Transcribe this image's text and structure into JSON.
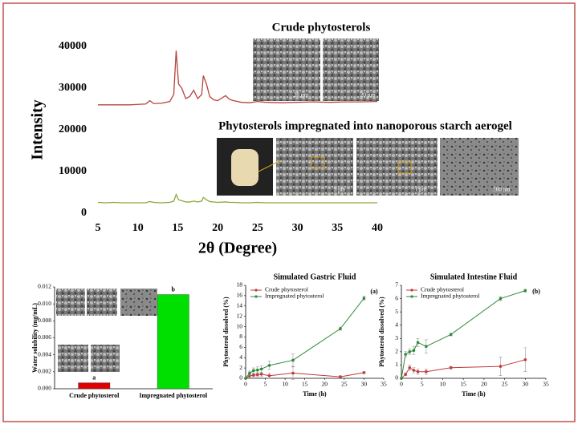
{
  "chart_data": [
    {
      "type": "line",
      "ylabel": "Intensity",
      "xlabel": "2θ (Degree)",
      "annotations": [
        "Crude phytosterols",
        "Phytosterols impregnated into nanoporous starch aerogel"
      ],
      "image_labels": [
        "20 µm",
        "20 µm",
        "5 µm",
        "1 µm",
        "500 nm"
      ],
      "x": [
        5,
        6,
        7,
        8,
        9,
        10,
        11,
        11.5,
        12,
        13,
        14,
        14.5,
        14.8,
        15.1,
        15.5,
        16,
        16.5,
        17,
        17.5,
        18,
        18.2,
        18.6,
        19,
        19.5,
        20,
        21,
        21.5,
        22,
        23,
        24,
        25,
        26,
        28,
        30,
        32,
        34,
        36,
        38,
        40
      ],
      "series": [
        {
          "color": "#b5443f",
          "values": [
            26000,
            26000,
            26000,
            26000,
            26000,
            26100,
            26200,
            27000,
            26300,
            26400,
            26800,
            28500,
            39000,
            31000,
            30000,
            27500,
            28000,
            29500,
            27500,
            28500,
            33000,
            31000,
            28000,
            27200,
            27000,
            28200,
            27300,
            27000,
            26600,
            26500,
            26800,
            26600,
            26500,
            26600,
            26700,
            26600,
            26700,
            26700,
            26800
          ]
        },
        {
          "color": "#8aa83a",
          "values": [
            2600,
            2500,
            2600,
            2500,
            2500,
            2500,
            2500,
            2800,
            2600,
            2500,
            2600,
            2900,
            4500,
            3200,
            3000,
            2700,
            2700,
            2900,
            2700,
            2900,
            3800,
            3200,
            2800,
            2700,
            2600,
            2700,
            2600,
            2600,
            2500,
            2500,
            2600,
            2500,
            2500,
            2500,
            2500,
            2500,
            2500,
            2500,
            2500
          ]
        }
      ],
      "xlim": [
        5,
        40
      ],
      "xticks": [
        5,
        10,
        15,
        20,
        25,
        30,
        35,
        40
      ],
      "ylim": [
        0,
        40000
      ],
      "yticks": [
        0,
        10000,
        20000,
        30000,
        40000
      ]
    },
    {
      "type": "bar",
      "ylabel": "Water solubility (mg/mL)",
      "categories": [
        "Crude phytosterol",
        "Impregnated phytosterol"
      ],
      "values": [
        0.0007,
        0.0111
      ],
      "colors": [
        "#e00000",
        "#00e000"
      ],
      "group_letters": [
        "a",
        "b"
      ],
      "ylim": [
        0,
        0.012
      ],
      "yticks": [
        {
          "value": 0,
          "label": "0.000"
        },
        {
          "value": 0.002,
          "label": "0.002"
        },
        {
          "value": 0.004,
          "label": "0.004"
        },
        {
          "value": 0.006,
          "label": "0.006"
        },
        {
          "value": 0.008,
          "label": "0.008"
        },
        {
          "value": 0.01,
          "label": "0.010"
        },
        {
          "value": 0.012,
          "label": "0.012"
        }
      ]
    },
    {
      "type": "line",
      "title": "Simulated Gastric Fluid",
      "panel": "(a)",
      "ylabel": "Phytosterol dissolved (%)",
      "xlabel": "Time (h)",
      "x": [
        0,
        1,
        2,
        3,
        4,
        6,
        12,
        24,
        30
      ],
      "series": [
        {
          "name": "Crude phytosterol",
          "color": "#c0393b",
          "values": [
            0,
            0.5,
            0.6,
            0.7,
            0.8,
            0.5,
            1,
            0.3,
            1.1
          ],
          "errors": [
            0,
            0.3,
            0.3,
            0.4,
            0.4,
            0.5,
            1.2,
            0.2,
            0.2
          ]
        },
        {
          "name": "Impregnated phytosterol",
          "color": "#2e8b3a",
          "values": [
            0,
            1,
            1.5,
            1.6,
            1.8,
            2.5,
            3.5,
            9.6,
            15.5
          ],
          "errors": [
            0,
            0.4,
            0.5,
            0.6,
            0.6,
            0.8,
            1.2,
            0.3,
            0.4
          ]
        }
      ],
      "xlim": [
        0,
        35
      ],
      "xticks": [
        0,
        5,
        10,
        15,
        20,
        25,
        30,
        35
      ],
      "ylim": [
        0,
        18
      ],
      "yticks": [
        0,
        2,
        4,
        6,
        8,
        10,
        12,
        14,
        16,
        18
      ]
    },
    {
      "type": "line",
      "title": "Simulated Intestine Fluid",
      "panel": "(b)",
      "ylabel": "Phytosterol dissolved (%)",
      "xlabel": "Time (h)",
      "x": [
        0,
        1,
        2,
        3,
        4,
        6,
        12,
        24,
        30
      ],
      "series": [
        {
          "name": "Crude phytosterol",
          "color": "#c0393b",
          "values": [
            0,
            0.3,
            0.8,
            0.6,
            0.5,
            0.5,
            0.8,
            0.9,
            1.4
          ],
          "errors": [
            0,
            0.1,
            0.2,
            0.2,
            0.2,
            0.2,
            0.1,
            0.7,
            0.9
          ]
        },
        {
          "name": "Impregnated phytosterol",
          "color": "#2e8b3a",
          "values": [
            0,
            1.8,
            2.0,
            2.1,
            2.7,
            2.4,
            3.3,
            6.0,
            6.6
          ],
          "errors": [
            0,
            0.2,
            0.2,
            0.3,
            0.3,
            0.5,
            0.1,
            0.15,
            0.1
          ]
        }
      ],
      "xlim": [
        0,
        35
      ],
      "xticks": [
        0,
        5,
        10,
        15,
        20,
        25,
        30,
        35
      ],
      "ylim": [
        0,
        7
      ],
      "yticks": [
        0,
        1,
        2,
        3,
        4,
        5,
        6,
        7
      ]
    }
  ]
}
